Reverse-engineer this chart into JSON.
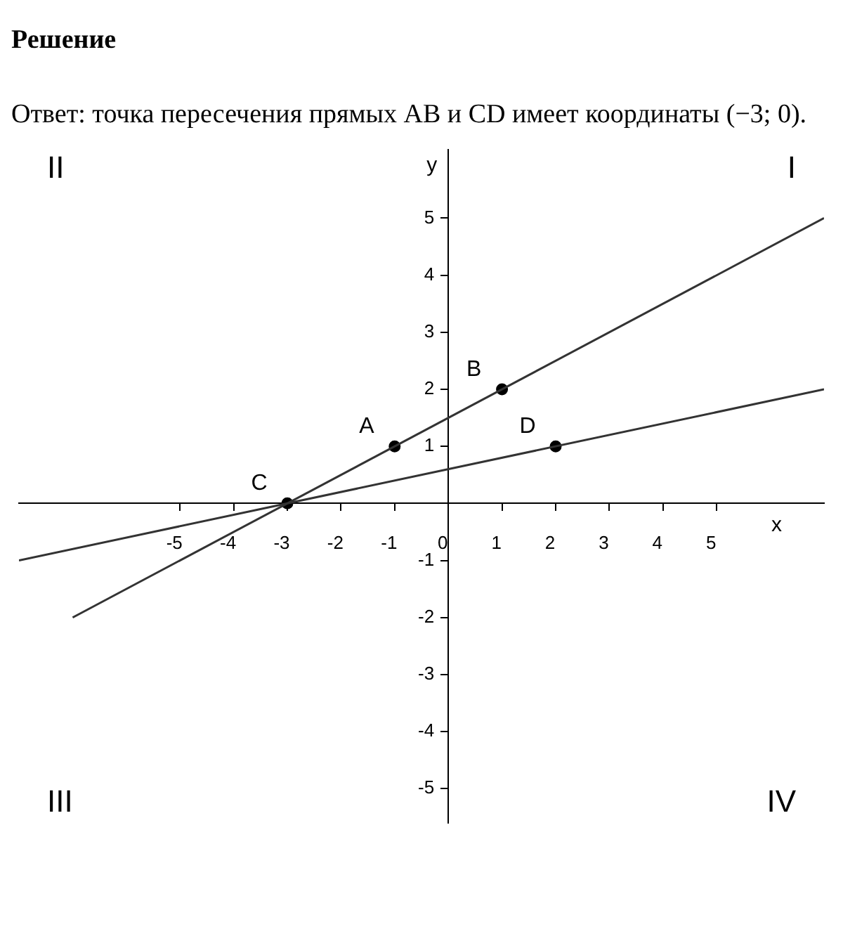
{
  "chart_data": {
    "type": "line",
    "title": "Решение",
    "xlabel": "x",
    "ylabel": "y",
    "annotations": [
      "Ответ: точка пересечения прямых AB и CD имеет координаты (−3; 0).",
      "II",
      "I",
      "III",
      "IV",
      {
        "text": "A",
        "x": -1,
        "y": 1
      },
      {
        "text": "B",
        "x": 1,
        "y": 2
      },
      {
        "text": "C",
        "x": -3,
        "y": 0
      },
      {
        "text": "D",
        "x": 2,
        "y": 1
      }
    ],
    "series": [
      {
        "type": "line",
        "color": "#333333",
        "x": [
          -7,
          7
        ],
        "values": [
          -2,
          5
        ]
      },
      {
        "type": "line",
        "color": "#333333",
        "x": [
          -8,
          7
        ],
        "values": [
          -1,
          2
        ]
      },
      {
        "type": "scatter",
        "color": "#000000",
        "marker": "circle",
        "x": [
          -3,
          -1,
          1,
          2
        ],
        "values": [
          0,
          1,
          2,
          1
        ]
      }
    ],
    "xlim": [
      -8,
      7
    ],
    "ylim": [
      -5.6,
      6.2
    ],
    "xticks": [
      -5,
      -4,
      -3,
      -2,
      -1,
      0,
      1,
      2,
      3,
      4,
      5
    ],
    "yticks": [
      -5,
      -4,
      -3,
      -2,
      -1,
      1,
      2,
      3,
      4,
      5
    ],
    "grid": false,
    "legend": false
  }
}
